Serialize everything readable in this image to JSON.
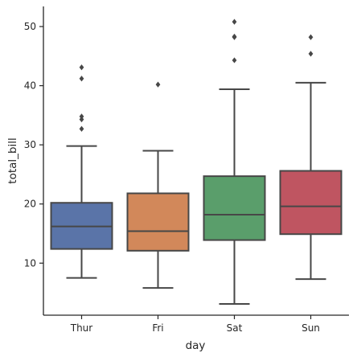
{
  "chart_data": {
    "type": "box",
    "xlabel": "day",
    "ylabel": "total_bill",
    "ylim": [
      1.2,
      53.4
    ],
    "yticks": [
      10,
      20,
      30,
      40,
      50
    ],
    "grid": false,
    "categories": [
      "Thur",
      "Fri",
      "Sat",
      "Sun"
    ],
    "boxes": [
      {
        "category": "Thur",
        "color": "#5a74a8",
        "whisker_low": 7.5,
        "q1": 12.4,
        "median": 16.2,
        "q3": 20.2,
        "whisker_high": 29.8,
        "outliers": [
          32.7,
          34.3,
          34.8,
          41.2,
          43.1
        ]
      },
      {
        "category": "Fri",
        "color": "#d2885a",
        "whisker_low": 5.8,
        "q1": 12.1,
        "median": 15.4,
        "q3": 21.8,
        "whisker_high": 29.0,
        "outliers": [
          40.2
        ]
      },
      {
        "category": "Sat",
        "color": "#5a9e6b",
        "whisker_low": 3.1,
        "q1": 13.9,
        "median": 18.2,
        "q3": 24.7,
        "whisker_high": 39.4,
        "outliers": [
          44.3,
          48.2,
          48.3,
          50.8
        ]
      },
      {
        "category": "Sun",
        "color": "#bf5561",
        "whisker_low": 7.3,
        "q1": 14.9,
        "median": 19.6,
        "q3": 25.6,
        "whisker_high": 40.5,
        "outliers": [
          45.4,
          48.2
        ]
      }
    ]
  }
}
